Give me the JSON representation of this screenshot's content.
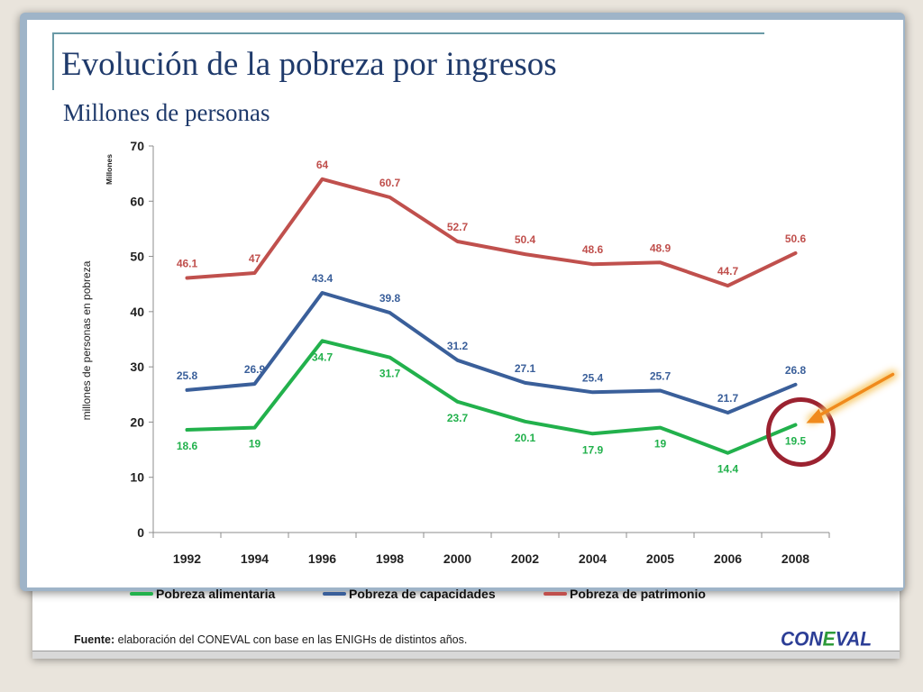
{
  "slide": {
    "title": "Evolución de la pobreza por ingresos",
    "subtitle": "Millones de personas"
  },
  "footer": {
    "source_label": "Fuente:",
    "source_text": " elaboración del CONEVAL con base en las ENIGHs de distintos años.",
    "logo_left": "CON",
    "logo_mid": "E",
    "logo_right": "VAL"
  },
  "colors": {
    "alimentaria": "#22b14c",
    "capacidades": "#3a5f9a",
    "patrimonio": "#c0504d",
    "highlight_circle": "#9b2230",
    "arrow": "#f08a1c"
  },
  "chart_data": {
    "type": "line",
    "categories": [
      "1992",
      "1994",
      "1996",
      "1998",
      "2000",
      "2002",
      "2004",
      "2005",
      "2006",
      "2008"
    ],
    "series": [
      {
        "name": "Pobreza alimentaria",
        "values": [
          18.6,
          19.0,
          34.7,
          31.7,
          23.7,
          20.1,
          17.9,
          19.0,
          14.4,
          19.5
        ]
      },
      {
        "name": "Pobreza de capacidades",
        "values": [
          25.8,
          26.9,
          43.4,
          39.8,
          31.2,
          27.1,
          25.4,
          25.7,
          21.7,
          26.8
        ]
      },
      {
        "name": "Pobreza de patrimonio",
        "values": [
          46.1,
          47.0,
          64.0,
          60.7,
          52.7,
          50.4,
          48.6,
          48.9,
          44.7,
          50.6
        ]
      }
    ],
    "ylabel": "millones de personas en pobreza",
    "yunit_label": "Millones",
    "ylim": [
      0,
      70
    ],
    "yticks": [
      0,
      10,
      20,
      30,
      40,
      50,
      60,
      70
    ],
    "legend_position": "bottom",
    "grid": false,
    "annotation": "circle and arrow highlighting the 2008 Pobreza alimentaria value"
  }
}
